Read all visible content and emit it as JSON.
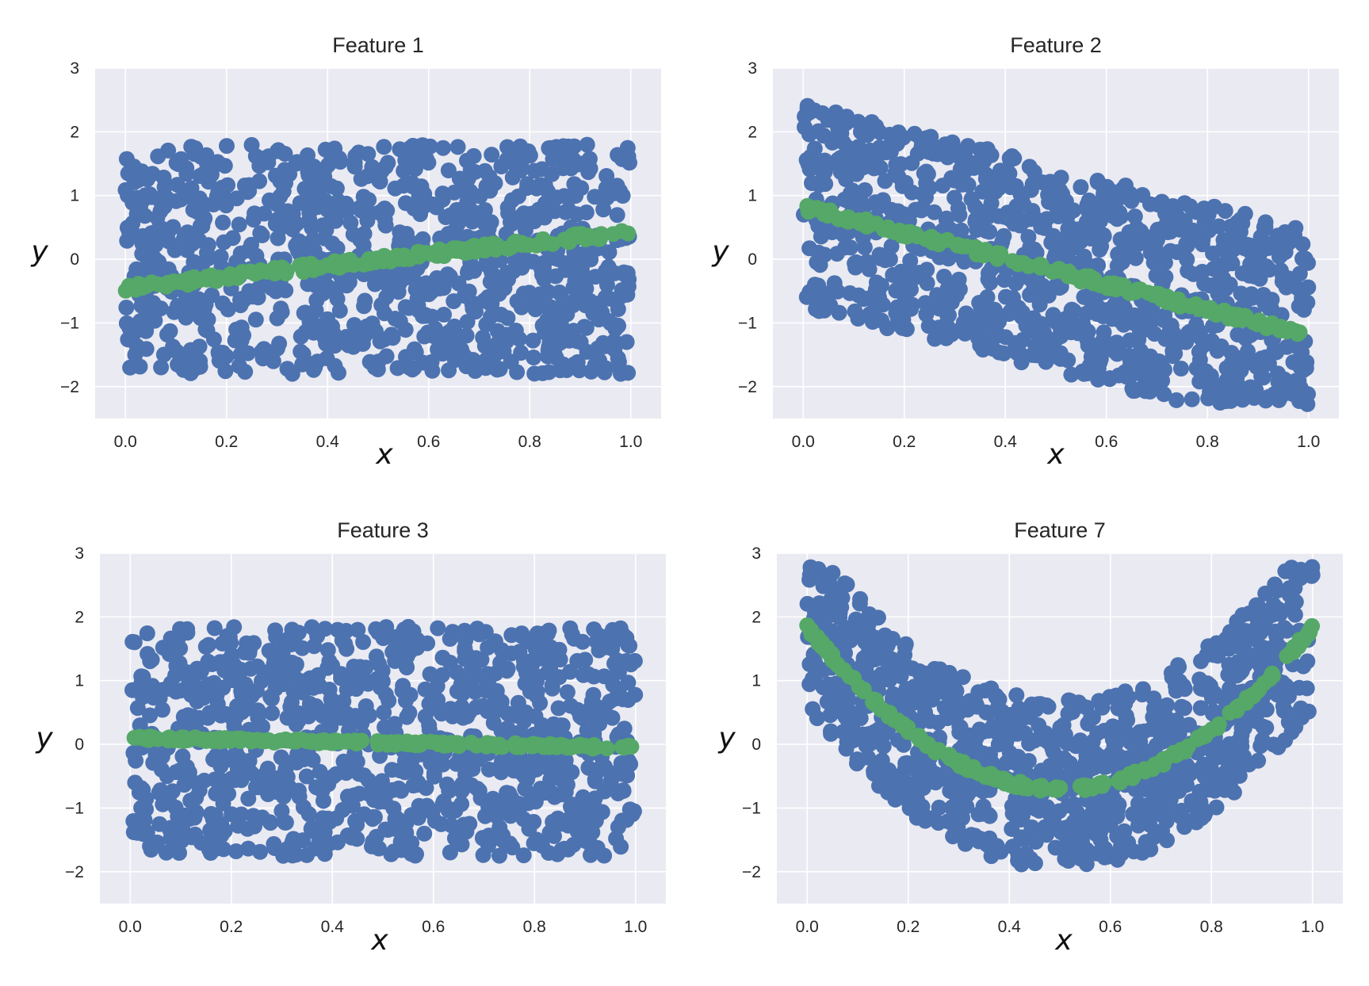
{
  "figure": {
    "background": "#ffffff",
    "plot_background": "#eaeaf2",
    "grid_color": "#ffffff",
    "scatter_color": "#4c72b0",
    "fit_color": "#55a868"
  },
  "chart_data": [
    {
      "type": "scatter",
      "title": "Feature 1",
      "xlabel": "x",
      "ylabel": "y",
      "xlim": [
        -0.06,
        1.06
      ],
      "ylim": [
        -2.5,
        3.0
      ],
      "xticks": [
        0.0,
        0.2,
        0.4,
        0.6,
        0.8,
        1.0
      ],
      "xtick_labels": [
        "0.0",
        "0.2",
        "0.4",
        "0.6",
        "0.8",
        "1.0"
      ],
      "yticks": [
        -2,
        -1,
        0,
        1,
        2,
        3
      ],
      "ytick_labels": [
        "−2",
        "−1",
        "0",
        "1",
        "2",
        "3"
      ],
      "grid": true,
      "series": [
        {
          "kind": "points",
          "color": "#4c72b0",
          "x_range": [
            0,
            1
          ],
          "y_center": [
            0.0
          ],
          "spread": 1.0,
          "n": 1000
        },
        {
          "kind": "fit",
          "color": "#55a868",
          "x_range": [
            0,
            1
          ],
          "model": "linear",
          "coefficients": [
            -0.45,
            0.88
          ],
          "fit_jitter": 0.06,
          "n": 180
        }
      ]
    },
    {
      "type": "scatter",
      "title": "Feature 2",
      "xlabel": "x",
      "ylabel": "y",
      "xlim": [
        -0.06,
        1.06
      ],
      "ylim": [
        -2.5,
        3.0
      ],
      "xticks": [
        0.0,
        0.2,
        0.4,
        0.6,
        0.8,
        1.0
      ],
      "xtick_labels": [
        "0.0",
        "0.2",
        "0.4",
        "0.6",
        "0.8",
        "1.0"
      ],
      "yticks": [
        -2,
        -1,
        0,
        1,
        2,
        3
      ],
      "ytick_labels": [
        "−2",
        "−1",
        "0",
        "1",
        "2",
        "3"
      ],
      "grid": true,
      "series": [
        {
          "kind": "points",
          "color": "#4c72b0",
          "x_range": [
            0,
            1
          ],
          "y_center": [
            0.85,
            -2.0
          ],
          "spread": 0.9,
          "n": 1000
        },
        {
          "kind": "fit",
          "color": "#55a868",
          "x_range": [
            0,
            1
          ],
          "model": "linear",
          "coefficients": [
            0.82,
            -2.02
          ],
          "fit_jitter": 0.06,
          "n": 180
        }
      ]
    },
    {
      "type": "scatter",
      "title": "Feature 3",
      "xlabel": "x",
      "ylabel": "y",
      "xlim": [
        -0.06,
        1.06
      ],
      "ylim": [
        -2.5,
        3.0
      ],
      "xticks": [
        0.0,
        0.2,
        0.4,
        0.6,
        0.8,
        1.0
      ],
      "xtick_labels": [
        "0.0",
        "0.2",
        "0.4",
        "0.6",
        "0.8",
        "1.0"
      ],
      "yticks": [
        -2,
        -1,
        0,
        1,
        2,
        3
      ],
      "ytick_labels": [
        "−2",
        "−1",
        "0",
        "1",
        "2",
        "3"
      ],
      "grid": true,
      "series": [
        {
          "kind": "points",
          "color": "#4c72b0",
          "x_range": [
            0,
            1
          ],
          "y_center": [
            0.05
          ],
          "spread": 1.0,
          "n": 1000
        },
        {
          "kind": "fit",
          "color": "#55a868",
          "x_range": [
            0,
            1
          ],
          "model": "linear",
          "coefficients": [
            0.1,
            -0.15
          ],
          "fit_jitter": 0.03,
          "n": 200
        }
      ]
    },
    {
      "type": "scatter",
      "title": "Feature 7",
      "xlabel": "x",
      "ylabel": "y",
      "xlim": [
        -0.06,
        1.06
      ],
      "ylim": [
        -2.5,
        3.0
      ],
      "xticks": [
        0.0,
        0.2,
        0.4,
        0.6,
        0.8,
        1.0
      ],
      "xtick_labels": [
        "0.0",
        "0.2",
        "0.4",
        "0.6",
        "0.8",
        "1.0"
      ],
      "yticks": [
        -2,
        -1,
        0,
        1,
        2,
        3
      ],
      "ytick_labels": [
        "−2",
        "−1",
        "0",
        "1",
        "2",
        "3"
      ],
      "grid": true,
      "series": [
        {
          "kind": "points",
          "color": "#4c72b0",
          "x_range": [
            0,
            1
          ],
          "y_center": [
            1.9,
            -10.2,
            10.2
          ],
          "spread": 0.75,
          "n": 1000
        },
        {
          "kind": "fit",
          "color": "#55a868",
          "x_range": [
            0,
            1
          ],
          "model": "quadratic",
          "coefficients": [
            1.85,
            -10.2,
            10.2
          ],
          "fit_jitter": 0.05,
          "n": 200
        }
      ]
    }
  ]
}
